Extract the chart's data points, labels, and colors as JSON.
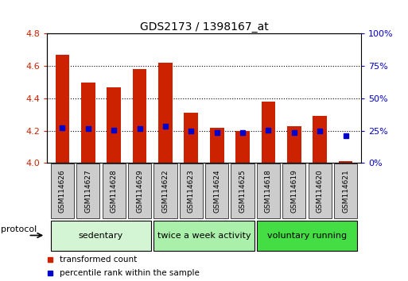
{
  "title": "GDS2173 / 1398167_at",
  "samples": [
    "GSM114626",
    "GSM114627",
    "GSM114628",
    "GSM114629",
    "GSM114622",
    "GSM114623",
    "GSM114624",
    "GSM114625",
    "GSM114618",
    "GSM114619",
    "GSM114620",
    "GSM114621"
  ],
  "red_values": [
    4.67,
    4.5,
    4.47,
    4.58,
    4.62,
    4.31,
    4.22,
    4.2,
    4.38,
    4.23,
    4.29,
    4.01
  ],
  "blue_values_pct": [
    27.5,
    26.5,
    25.5,
    26.5,
    28.5,
    25.0,
    23.3,
    23.3,
    25.5,
    23.5,
    24.5,
    21.0
  ],
  "ylim_left": [
    4.0,
    4.8
  ],
  "ylim_right": [
    0,
    100
  ],
  "yticks_left": [
    4.0,
    4.2,
    4.4,
    4.6,
    4.8
  ],
  "yticks_right": [
    0,
    25,
    50,
    75,
    100
  ],
  "group_labels": [
    "sedentary",
    "twice a week activity",
    "voluntary running"
  ],
  "group_ranges": [
    [
      0,
      3
    ],
    [
      4,
      7
    ],
    [
      8,
      11
    ]
  ],
  "group_colors": [
    "#d4f5d4",
    "#aaf0aa",
    "#44dd44"
  ],
  "bar_color": "#cc2200",
  "blue_color": "#0000cc",
  "bg_color": "#ffffff",
  "ylabel_left_color": "#cc2200",
  "ylabel_right_color": "#0000cc",
  "legend_red": "transformed count",
  "legend_blue": "percentile rank within the sample",
  "protocol_label": "protocol",
  "bar_width": 0.55,
  "base_value": 4.0,
  "label_box_color": "#cccccc",
  "label_text_fontsize": 6.5,
  "group_text_fontsize": 8,
  "title_fontsize": 10,
  "tick_fontsize": 8
}
